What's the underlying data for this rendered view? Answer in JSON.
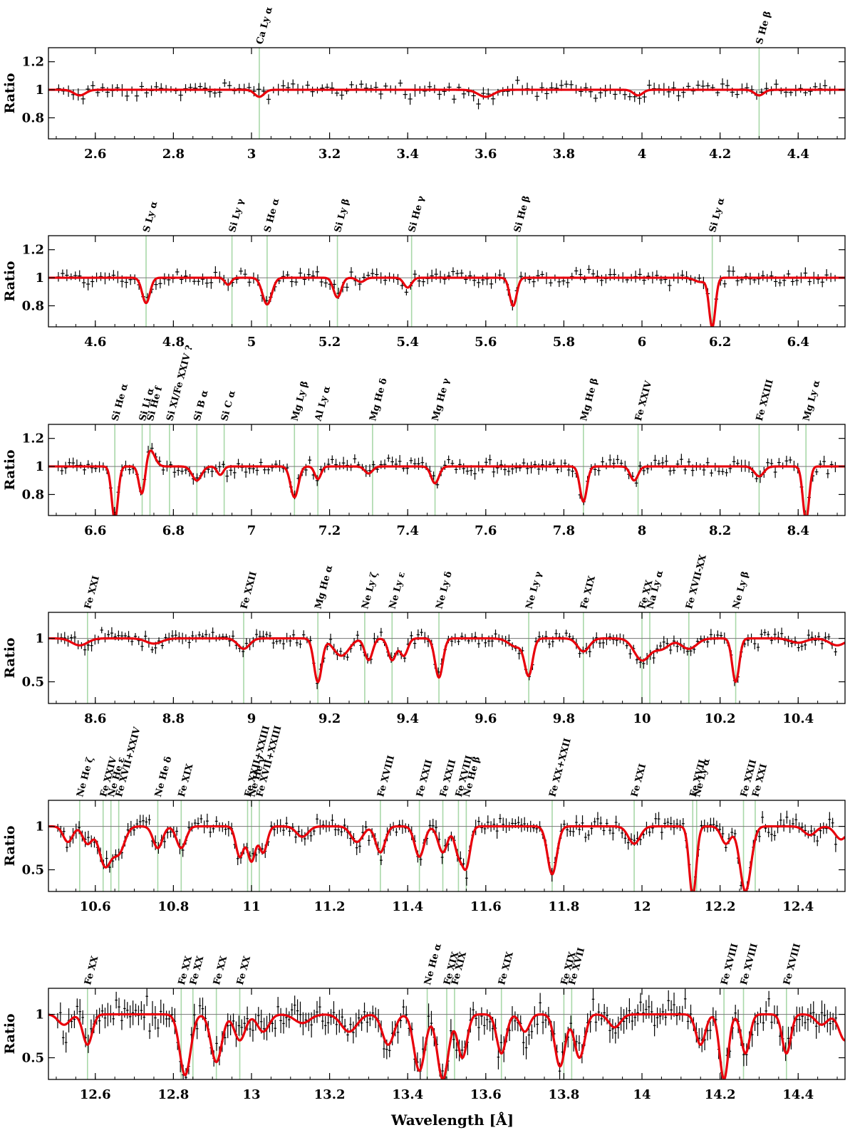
{
  "figure": {
    "xlabel": "Wavelength [Å]"
  },
  "colors": {
    "model": "#e8000b",
    "line_marker": "#a9d8a9",
    "data": "#000000",
    "frame": "#000000",
    "unity": "#777777"
  },
  "chart_data": [
    {
      "type": "line",
      "ylabel": "Ratio",
      "xlim": [
        2.48,
        4.52
      ],
      "ylim": [
        0.65,
        1.3
      ],
      "xticks": [
        2.6,
        2.8,
        3,
        3.2,
        3.4,
        3.6,
        3.8,
        4,
        4.2,
        4.4
      ],
      "xtick_labels": [
        "2.6",
        "2.8",
        "3",
        "3.2",
        "3.4",
        "3.6",
        "3.8",
        "4",
        "4.2",
        "4.4"
      ],
      "yticks": [
        0.8,
        1,
        1.2
      ],
      "ytick_labels": [
        "0.8",
        "1",
        "1.2"
      ],
      "lines": [
        {
          "x": 3.02,
          "label": "Ca Ly α"
        },
        {
          "x": 4.3,
          "label": "S He β"
        }
      ],
      "absorption": [
        {
          "x": 2.56,
          "d": 0.04,
          "w": 0.015
        },
        {
          "x": 3.02,
          "d": 0.05,
          "w": 0.012
        },
        {
          "x": 3.6,
          "d": 0.05,
          "w": 0.02
        },
        {
          "x": 3.99,
          "d": 0.04,
          "w": 0.012
        },
        {
          "x": 4.3,
          "d": 0.04,
          "w": 0.012
        }
      ],
      "noise": 0.045
    },
    {
      "type": "line",
      "ylabel": "Ratio",
      "xlim": [
        4.48,
        6.52
      ],
      "ylim": [
        0.65,
        1.3
      ],
      "xticks": [
        4.6,
        4.8,
        5,
        5.2,
        5.4,
        5.6,
        5.8,
        6,
        6.2,
        6.4
      ],
      "xtick_labels": [
        "4.6",
        "4.8",
        "5",
        "5.2",
        "5.4",
        "5.6",
        "5.8",
        "6",
        "6.2",
        "6.4"
      ],
      "yticks": [
        0.8,
        1,
        1.2
      ],
      "ytick_labels": [
        "0.8",
        "1",
        "1.2"
      ],
      "lines": [
        {
          "x": 4.73,
          "label": "S Ly α"
        },
        {
          "x": 4.95,
          "label": "Si Ly γ"
        },
        {
          "x": 5.04,
          "label": "S He α"
        },
        {
          "x": 5.22,
          "label": "Si Ly β"
        },
        {
          "x": 5.41,
          "label": "Si He γ"
        },
        {
          "x": 5.68,
          "label": "Si He β"
        },
        {
          "x": 6.18,
          "label": "Si Ly α"
        }
      ],
      "absorption": [
        {
          "x": 4.73,
          "d": 0.18,
          "w": 0.01
        },
        {
          "x": 4.94,
          "d": 0.05,
          "w": 0.008
        },
        {
          "x": 5.04,
          "d": 0.19,
          "w": 0.012
        },
        {
          "x": 5.22,
          "d": 0.14,
          "w": 0.01
        },
        {
          "x": 5.28,
          "d": 0.03,
          "w": 0.01
        },
        {
          "x": 5.4,
          "d": 0.07,
          "w": 0.01
        },
        {
          "x": 5.67,
          "d": 0.2,
          "w": 0.009
        },
        {
          "x": 6.15,
          "d": 0.03,
          "w": 0.015
        },
        {
          "x": 6.18,
          "d": 0.35,
          "w": 0.008
        }
      ],
      "noise": 0.045
    },
    {
      "type": "line",
      "ylabel": "Ratio",
      "xlim": [
        6.48,
        8.52
      ],
      "ylim": [
        0.65,
        1.3
      ],
      "xticks": [
        6.6,
        6.8,
        7,
        7.2,
        7.4,
        7.6,
        7.8,
        8,
        8.2,
        8.4
      ],
      "xtick_labels": [
        "6.6",
        "6.8",
        "7",
        "7.2",
        "7.4",
        "7.6",
        "7.8",
        "8",
        "8.2",
        "8.4"
      ],
      "yticks": [
        0.8,
        1,
        1.2
      ],
      "ytick_labels": [
        "0.8",
        "1",
        "1.2"
      ],
      "lines": [
        {
          "x": 6.65,
          "label": "Si He α"
        },
        {
          "x": 6.72,
          "label": "Si Li α"
        },
        {
          "x": 6.74,
          "label": "Si He f"
        },
        {
          "x": 6.79,
          "label": "Si XI/Fe XXIV ?"
        },
        {
          "x": 6.86,
          "label": "Si B α"
        },
        {
          "x": 6.93,
          "label": "Si C α"
        },
        {
          "x": 7.11,
          "label": "Mg Ly β"
        },
        {
          "x": 7.17,
          "label": "Al Ly α"
        },
        {
          "x": 7.31,
          "label": "Mg He δ"
        },
        {
          "x": 7.47,
          "label": "Mg He γ"
        },
        {
          "x": 7.85,
          "label": "Mg He β"
        },
        {
          "x": 7.99,
          "label": "Fe XXIV"
        },
        {
          "x": 8.3,
          "label": "Fe XXIII"
        },
        {
          "x": 8.42,
          "label": "Mg Ly α"
        }
      ],
      "absorption": [
        {
          "x": 6.65,
          "d": 0.38,
          "w": 0.008
        },
        {
          "x": 6.72,
          "d": 0.22,
          "w": 0.008
        },
        {
          "x": 6.74,
          "d": -0.12,
          "w": 0.012
        },
        {
          "x": 6.86,
          "d": 0.1,
          "w": 0.012
        },
        {
          "x": 6.92,
          "d": 0.06,
          "w": 0.008
        },
        {
          "x": 7.11,
          "d": 0.22,
          "w": 0.01
        },
        {
          "x": 7.17,
          "d": 0.09,
          "w": 0.008
        },
        {
          "x": 7.3,
          "d": 0.05,
          "w": 0.01
        },
        {
          "x": 7.47,
          "d": 0.12,
          "w": 0.01
        },
        {
          "x": 7.85,
          "d": 0.25,
          "w": 0.009
        },
        {
          "x": 7.98,
          "d": 0.1,
          "w": 0.01
        },
        {
          "x": 8.3,
          "d": 0.07,
          "w": 0.012
        },
        {
          "x": 8.42,
          "d": 0.38,
          "w": 0.008
        }
      ],
      "noise": 0.045
    },
    {
      "type": "line",
      "ylabel": "Ratio",
      "xlim": [
        8.48,
        10.52
      ],
      "ylim": [
        0.25,
        1.3
      ],
      "xticks": [
        8.6,
        8.8,
        9,
        9.2,
        9.4,
        9.6,
        9.8,
        10,
        10.2,
        10.4
      ],
      "xtick_labels": [
        "8.6",
        "8.8",
        "9",
        "9.2",
        "9.4",
        "9.6",
        "9.8",
        "10",
        "10.2",
        "10.4"
      ],
      "yticks": [
        0.5,
        1
      ],
      "ytick_labels": [
        "0.5",
        "1"
      ],
      "lines": [
        {
          "x": 8.58,
          "label": "Fe XXI"
        },
        {
          "x": 8.98,
          "label": "Fe XXII"
        },
        {
          "x": 9.17,
          "label": "Mg He α"
        },
        {
          "x": 9.29,
          "label": "Ne Ly ζ"
        },
        {
          "x": 9.36,
          "label": "Ne Ly ε"
        },
        {
          "x": 9.48,
          "label": "Ne Ly δ"
        },
        {
          "x": 9.71,
          "label": "Ne Ly γ"
        },
        {
          "x": 9.85,
          "label": "Fe XIX"
        },
        {
          "x": 10.0,
          "label": "Fe XX"
        },
        {
          "x": 10.02,
          "label": "Na Ly α"
        },
        {
          "x": 10.12,
          "label": "Fe XVII-XX"
        },
        {
          "x": 10.24,
          "label": "Ne Ly β"
        }
      ],
      "absorption": [
        {
          "x": 8.56,
          "d": 0.08,
          "w": 0.02
        },
        {
          "x": 8.75,
          "d": 0.06,
          "w": 0.02
        },
        {
          "x": 8.98,
          "d": 0.12,
          "w": 0.015
        },
        {
          "x": 9.17,
          "d": 0.5,
          "w": 0.01
        },
        {
          "x": 9.23,
          "d": 0.2,
          "w": 0.02
        },
        {
          "x": 9.3,
          "d": 0.25,
          "w": 0.01
        },
        {
          "x": 9.36,
          "d": 0.25,
          "w": 0.01
        },
        {
          "x": 9.39,
          "d": 0.2,
          "w": 0.01
        },
        {
          "x": 9.48,
          "d": 0.45,
          "w": 0.01
        },
        {
          "x": 9.68,
          "d": 0.1,
          "w": 0.02
        },
        {
          "x": 9.71,
          "d": 0.4,
          "w": 0.01
        },
        {
          "x": 9.85,
          "d": 0.15,
          "w": 0.015
        },
        {
          "x": 10.0,
          "d": 0.25,
          "w": 0.02
        },
        {
          "x": 10.05,
          "d": 0.12,
          "w": 0.02
        },
        {
          "x": 10.12,
          "d": 0.12,
          "w": 0.02
        },
        {
          "x": 10.24,
          "d": 0.5,
          "w": 0.009
        },
        {
          "x": 10.4,
          "d": 0.05,
          "w": 0.02
        },
        {
          "x": 10.5,
          "d": 0.08,
          "w": 0.02
        }
      ],
      "noise": 0.07
    },
    {
      "type": "line",
      "ylabel": "Ratio",
      "xlim": [
        10.48,
        12.52
      ],
      "ylim": [
        0.25,
        1.3
      ],
      "xticks": [
        10.6,
        10.8,
        11,
        11.2,
        11.4,
        11.6,
        11.8,
        12,
        12.2,
        12.4
      ],
      "xtick_labels": [
        "10.6",
        "10.8",
        "11",
        "11.2",
        "11.4",
        "11.6",
        "11.8",
        "12",
        "12.2",
        "12.4"
      ],
      "yticks": [
        0.5,
        1
      ],
      "ytick_labels": [
        "0.5",
        "1"
      ],
      "lines": [
        {
          "x": 10.56,
          "label": "Ne He ζ"
        },
        {
          "x": 10.62,
          "label": "Fe XXIV"
        },
        {
          "x": 10.64,
          "label": "Ne He ε"
        },
        {
          "x": 10.66,
          "label": "Fe XVII+XXIV"
        },
        {
          "x": 10.76,
          "label": "Ne He δ"
        },
        {
          "x": 10.82,
          "label": "Fe XIX"
        },
        {
          "x": 10.99,
          "label": "Fe XXII+XXIII"
        },
        {
          "x": 11.0,
          "label": "Ne He γ"
        },
        {
          "x": 11.02,
          "label": "Fe XVII+XXIII"
        },
        {
          "x": 11.33,
          "label": "Fe XVIII"
        },
        {
          "x": 11.43,
          "label": "Fe XXII"
        },
        {
          "x": 11.49,
          "label": "Fe XXII"
        },
        {
          "x": 11.53,
          "label": "Fe XVIII"
        },
        {
          "x": 11.55,
          "label": "Ne He β"
        },
        {
          "x": 11.77,
          "label": "Fe XX+XXII"
        },
        {
          "x": 11.98,
          "label": "Fe XXI"
        },
        {
          "x": 12.13,
          "label": "Fe XVII"
        },
        {
          "x": 12.14,
          "label": "Ne Ly α"
        },
        {
          "x": 12.26,
          "label": "Fe XXII"
        },
        {
          "x": 12.29,
          "label": "Fe XXI"
        }
      ],
      "absorption": [
        {
          "x": 10.53,
          "d": 0.18,
          "w": 0.012
        },
        {
          "x": 10.58,
          "d": 0.2,
          "w": 0.012
        },
        {
          "x": 10.625,
          "d": 0.45,
          "w": 0.015
        },
        {
          "x": 10.66,
          "d": 0.3,
          "w": 0.015
        },
        {
          "x": 10.76,
          "d": 0.25,
          "w": 0.012
        },
        {
          "x": 10.82,
          "d": 0.25,
          "w": 0.012
        },
        {
          "x": 10.97,
          "d": 0.35,
          "w": 0.01
        },
        {
          "x": 11.0,
          "d": 0.4,
          "w": 0.01
        },
        {
          "x": 11.03,
          "d": 0.3,
          "w": 0.01
        },
        {
          "x": 11.13,
          "d": 0.12,
          "w": 0.015
        },
        {
          "x": 11.27,
          "d": 0.18,
          "w": 0.015
        },
        {
          "x": 11.33,
          "d": 0.3,
          "w": 0.012
        },
        {
          "x": 11.43,
          "d": 0.35,
          "w": 0.012
        },
        {
          "x": 11.49,
          "d": 0.3,
          "w": 0.012
        },
        {
          "x": 11.53,
          "d": 0.3,
          "w": 0.01
        },
        {
          "x": 11.55,
          "d": 0.45,
          "w": 0.01
        },
        {
          "x": 11.77,
          "d": 0.55,
          "w": 0.012
        },
        {
          "x": 11.98,
          "d": 0.2,
          "w": 0.015
        },
        {
          "x": 12.13,
          "d": 0.8,
          "w": 0.009
        },
        {
          "x": 12.215,
          "d": 0.2,
          "w": 0.012
        },
        {
          "x": 12.265,
          "d": 0.75,
          "w": 0.014
        },
        {
          "x": 12.43,
          "d": 0.1,
          "w": 0.015
        },
        {
          "x": 12.51,
          "d": 0.15,
          "w": 0.015
        }
      ],
      "noise": 0.09
    },
    {
      "type": "line",
      "ylabel": "Ratio",
      "xlim": [
        12.48,
        14.52
      ],
      "ylim": [
        0.25,
        1.3
      ],
      "xticks": [
        12.6,
        12.8,
        13,
        13.2,
        13.4,
        13.6,
        13.8,
        14,
        14.2,
        14.4
      ],
      "xtick_labels": [
        "12.6",
        "12.8",
        "13",
        "13.2",
        "13.4",
        "13.6",
        "13.8",
        "14",
        "14.2",
        "14.4"
      ],
      "yticks": [
        0.5,
        1
      ],
      "ytick_labels": [
        "0.5",
        "1"
      ],
      "lines": [
        {
          "x": 12.58,
          "label": "Fe XX"
        },
        {
          "x": 12.82,
          "label": "Fe XX"
        },
        {
          "x": 12.85,
          "label": "Fe XX"
        },
        {
          "x": 12.91,
          "label": "Fe XX"
        },
        {
          "x": 12.97,
          "label": "Fe XX"
        },
        {
          "x": 13.45,
          "label": "Ne He α"
        },
        {
          "x": 13.5,
          "label": "Fe XIX"
        },
        {
          "x": 13.52,
          "label": "Fe XIX"
        },
        {
          "x": 13.64,
          "label": "Fe XIX"
        },
        {
          "x": 13.8,
          "label": "Fe XIX"
        },
        {
          "x": 13.82,
          "label": "Fe XVII"
        },
        {
          "x": 14.21,
          "label": "Fe XVIII"
        },
        {
          "x": 14.26,
          "label": "Fe XVIII"
        },
        {
          "x": 14.37,
          "label": "Fe XVIII"
        }
      ],
      "absorption": [
        {
          "x": 12.52,
          "d": 0.12,
          "w": 0.015
        },
        {
          "x": 12.58,
          "d": 0.35,
          "w": 0.012
        },
        {
          "x": 12.83,
          "d": 0.7,
          "w": 0.014
        },
        {
          "x": 12.91,
          "d": 0.55,
          "w": 0.014
        },
        {
          "x": 12.97,
          "d": 0.3,
          "w": 0.014
        },
        {
          "x": 13.03,
          "d": 0.2,
          "w": 0.015
        },
        {
          "x": 13.13,
          "d": 0.1,
          "w": 0.02
        },
        {
          "x": 13.25,
          "d": 0.2,
          "w": 0.02
        },
        {
          "x": 13.35,
          "d": 0.35,
          "w": 0.015
        },
        {
          "x": 13.43,
          "d": 0.65,
          "w": 0.014
        },
        {
          "x": 13.49,
          "d": 0.75,
          "w": 0.014
        },
        {
          "x": 13.54,
          "d": 0.5,
          "w": 0.012
        },
        {
          "x": 13.64,
          "d": 0.45,
          "w": 0.012
        },
        {
          "x": 13.7,
          "d": 0.2,
          "w": 0.012
        },
        {
          "x": 13.79,
          "d": 0.6,
          "w": 0.013
        },
        {
          "x": 13.84,
          "d": 0.5,
          "w": 0.013
        },
        {
          "x": 13.93,
          "d": 0.15,
          "w": 0.015
        },
        {
          "x": 14.15,
          "d": 0.35,
          "w": 0.012
        },
        {
          "x": 14.21,
          "d": 0.75,
          "w": 0.011
        },
        {
          "x": 14.265,
          "d": 0.45,
          "w": 0.011
        },
        {
          "x": 14.37,
          "d": 0.45,
          "w": 0.011
        },
        {
          "x": 14.46,
          "d": 0.12,
          "w": 0.015
        },
        {
          "x": 14.52,
          "d": 0.3,
          "w": 0.015
        }
      ],
      "noise": 0.15
    }
  ]
}
